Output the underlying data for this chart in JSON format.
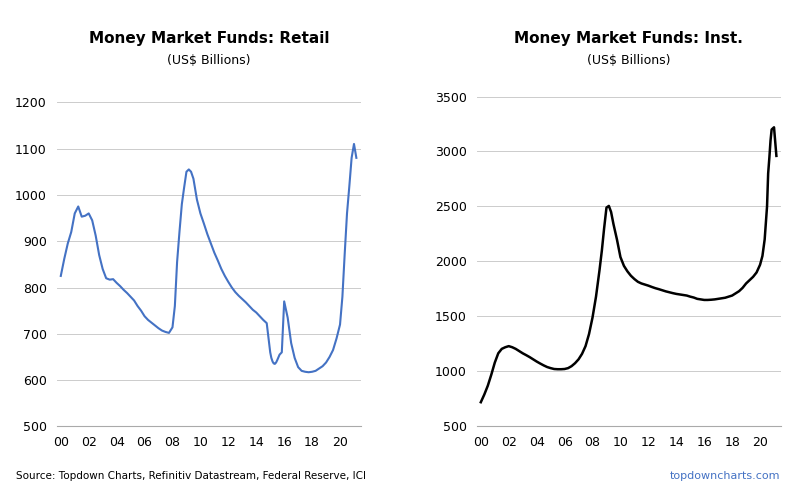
{
  "title_retail": "Money Market Funds: Retail",
  "title_inst": "Money Market Funds: Inst.",
  "subtitle": "(US$ Billions)",
  "retail_color": "#4472C4",
  "inst_color": "#000000",
  "source_text": "Source: Topdown Charts, Refinitiv Datastream, Federal Reserve, ICI",
  "watermark_text": "topdowncharts.com",
  "retail_ylim": [
    500,
    1260
  ],
  "retail_yticks": [
    500,
    600,
    700,
    800,
    900,
    1000,
    1100,
    1200
  ],
  "inst_ylim": [
    500,
    3700
  ],
  "inst_yticks": [
    500,
    1000,
    1500,
    2000,
    2500,
    3000,
    3500
  ],
  "xticks": [
    0,
    2,
    4,
    6,
    8,
    10,
    12,
    14,
    16,
    18,
    20
  ],
  "xlabels": [
    "00",
    "02",
    "04",
    "06",
    "08",
    "10",
    "12",
    "14",
    "16",
    "18",
    "20"
  ],
  "retail_x": [
    0.0,
    0.25,
    0.5,
    0.75,
    1.0,
    1.25,
    1.5,
    1.75,
    2.0,
    2.25,
    2.5,
    2.75,
    3.0,
    3.25,
    3.5,
    3.75,
    4.0,
    4.25,
    4.5,
    4.75,
    5.0,
    5.25,
    5.5,
    5.75,
    6.0,
    6.25,
    6.5,
    6.75,
    7.0,
    7.25,
    7.5,
    7.75,
    8.0,
    8.17,
    8.33,
    8.5,
    8.67,
    8.83,
    9.0,
    9.17,
    9.33,
    9.5,
    9.75,
    10.0,
    10.25,
    10.5,
    10.75,
    11.0,
    11.25,
    11.5,
    11.75,
    12.0,
    12.25,
    12.5,
    12.75,
    13.0,
    13.25,
    13.5,
    13.75,
    14.0,
    14.25,
    14.5,
    14.75,
    15.0,
    15.08,
    15.17,
    15.25,
    15.33,
    15.42,
    15.5,
    15.67,
    15.83,
    16.0,
    16.25,
    16.5,
    16.75,
    17.0,
    17.25,
    17.5,
    17.75,
    18.0,
    18.25,
    18.5,
    18.75,
    19.0,
    19.25,
    19.5,
    19.75,
    20.0,
    20.17,
    20.33,
    20.5,
    20.67,
    20.83,
    21.0,
    21.17
  ],
  "retail_y": [
    825,
    862,
    895,
    920,
    960,
    975,
    953,
    955,
    960,
    945,
    912,
    870,
    840,
    820,
    817,
    818,
    810,
    803,
    795,
    788,
    780,
    772,
    760,
    750,
    738,
    730,
    724,
    718,
    712,
    707,
    704,
    702,
    714,
    760,
    855,
    920,
    980,
    1015,
    1050,
    1055,
    1050,
    1035,
    990,
    960,
    938,
    915,
    895,
    875,
    858,
    840,
    825,
    812,
    800,
    790,
    782,
    775,
    768,
    760,
    752,
    746,
    738,
    730,
    723,
    660,
    648,
    640,
    636,
    635,
    638,
    643,
    655,
    660,
    770,
    735,
    680,
    648,
    628,
    620,
    618,
    617,
    618,
    620,
    625,
    630,
    638,
    650,
    665,
    690,
    720,
    780,
    870,
    960,
    1020,
    1080,
    1110,
    1080
  ],
  "inst_x": [
    0.0,
    0.25,
    0.5,
    0.75,
    1.0,
    1.25,
    1.5,
    1.75,
    2.0,
    2.25,
    2.5,
    2.75,
    3.0,
    3.25,
    3.5,
    3.75,
    4.0,
    4.25,
    4.5,
    4.75,
    5.0,
    5.25,
    5.5,
    5.75,
    6.0,
    6.25,
    6.5,
    6.75,
    7.0,
    7.25,
    7.5,
    7.75,
    8.0,
    8.25,
    8.5,
    8.67,
    8.83,
    9.0,
    9.17,
    9.33,
    9.5,
    9.75,
    10.0,
    10.25,
    10.5,
    10.75,
    11.0,
    11.25,
    11.5,
    11.75,
    12.0,
    12.25,
    12.5,
    12.75,
    13.0,
    13.25,
    13.5,
    13.75,
    14.0,
    14.25,
    14.5,
    14.75,
    15.0,
    15.25,
    15.5,
    15.75,
    16.0,
    16.25,
    16.5,
    16.75,
    17.0,
    17.25,
    17.5,
    17.75,
    18.0,
    18.25,
    18.5,
    18.75,
    19.0,
    19.25,
    19.5,
    19.75,
    20.0,
    20.17,
    20.33,
    20.5,
    20.58,
    20.67,
    20.75,
    20.83,
    21.0,
    21.17
  ],
  "inst_y": [
    720,
    790,
    870,
    970,
    1080,
    1165,
    1205,
    1220,
    1230,
    1220,
    1205,
    1185,
    1165,
    1148,
    1130,
    1110,
    1090,
    1072,
    1055,
    1040,
    1030,
    1022,
    1020,
    1020,
    1022,
    1030,
    1048,
    1075,
    1110,
    1160,
    1230,
    1340,
    1490,
    1680,
    1920,
    2100,
    2300,
    2490,
    2505,
    2450,
    2340,
    2200,
    2040,
    1960,
    1910,
    1870,
    1840,
    1815,
    1800,
    1790,
    1780,
    1768,
    1757,
    1748,
    1738,
    1728,
    1720,
    1712,
    1705,
    1700,
    1695,
    1690,
    1680,
    1672,
    1660,
    1655,
    1650,
    1650,
    1652,
    1655,
    1660,
    1665,
    1670,
    1680,
    1690,
    1710,
    1730,
    1760,
    1800,
    1830,
    1860,
    1900,
    1970,
    2050,
    2200,
    2500,
    2800,
    2950,
    3100,
    3200,
    3220,
    2960
  ]
}
